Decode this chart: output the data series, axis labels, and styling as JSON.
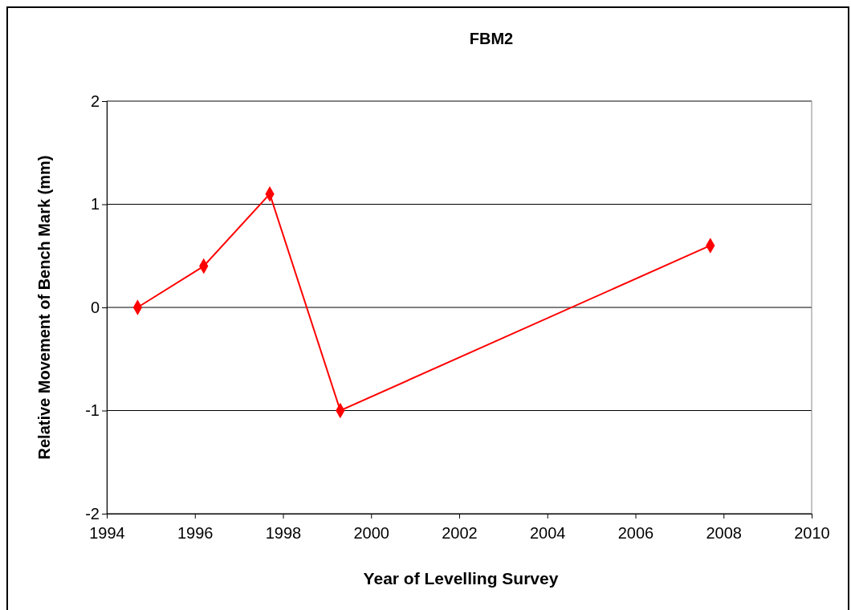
{
  "chart_data": {
    "type": "line",
    "title": "FBM2",
    "xlabel": "Year of Levelling Survey",
    "ylabel": "Relative Movement of Bench Mark (mm)",
    "x": [
      1994.7,
      1996.2,
      1997.7,
      1999.3,
      2007.7
    ],
    "series": [
      {
        "color": "#ff0000",
        "values": [
          0,
          0.4,
          1.1,
          -1,
          0.6
        ]
      }
    ],
    "xlim": [
      1994,
      2010
    ],
    "xticks": [
      1994,
      1996,
      1998,
      2000,
      2002,
      2004,
      2006,
      2008,
      2010
    ],
    "ylim": [
      -2,
      2
    ],
    "yticks": [
      -2,
      -1,
      0,
      1,
      2
    ],
    "grid": "y",
    "legend": false,
    "marker": "diamond",
    "line_style": "solid"
  }
}
